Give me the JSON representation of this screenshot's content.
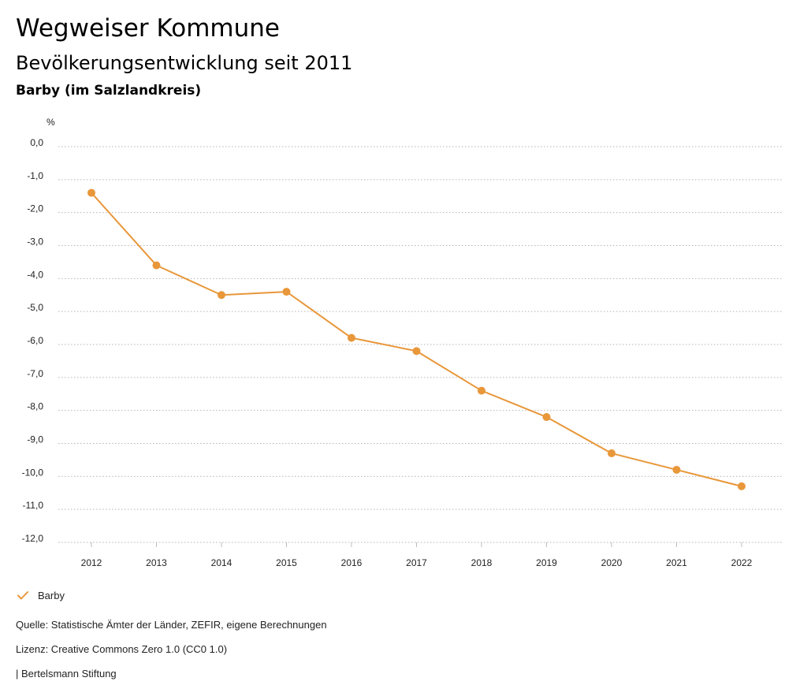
{
  "header": {
    "title": "Wegweiser Kommune",
    "subtitle": "Bevölkerungsentwicklung seit 2011",
    "region": "Barby (im Salzlandkreis)"
  },
  "footer": {
    "source": "Quelle: Statistische Ämter der Länder, ZEFIR, eigene Berechnungen",
    "license": "Lizenz: Creative Commons Zero 1.0 (CC0 1.0)",
    "publisher": "| Bertelsmann Stiftung"
  },
  "chart_data": {
    "type": "line",
    "ylabel": "%",
    "ylim": [
      -12,
      0
    ],
    "yticks": [
      0,
      -1,
      -2,
      -3,
      -4,
      -5,
      -6,
      -7,
      -8,
      -9,
      -10,
      -11,
      -12
    ],
    "ytick_labels": [
      "0,0",
      "-1,0",
      "-2,0",
      "-3,0",
      "-4,0",
      "-5,0",
      "-6,0",
      "-7,0",
      "-8,0",
      "-9,0",
      "-10,0",
      "-11,0",
      "-12,0"
    ],
    "categories": [
      "2012",
      "2013",
      "2014",
      "2015",
      "2016",
      "2017",
      "2018",
      "2019",
      "2020",
      "2021",
      "2022"
    ],
    "grid": true,
    "legend_position": "bottom-left",
    "series": [
      {
        "name": "Barby",
        "color": "#e8973a",
        "values": [
          -1.4,
          -3.6,
          -4.5,
          -4.4,
          -5.8,
          -6.2,
          -7.4,
          -8.2,
          -9.3,
          -9.8,
          -10.3
        ]
      }
    ]
  }
}
